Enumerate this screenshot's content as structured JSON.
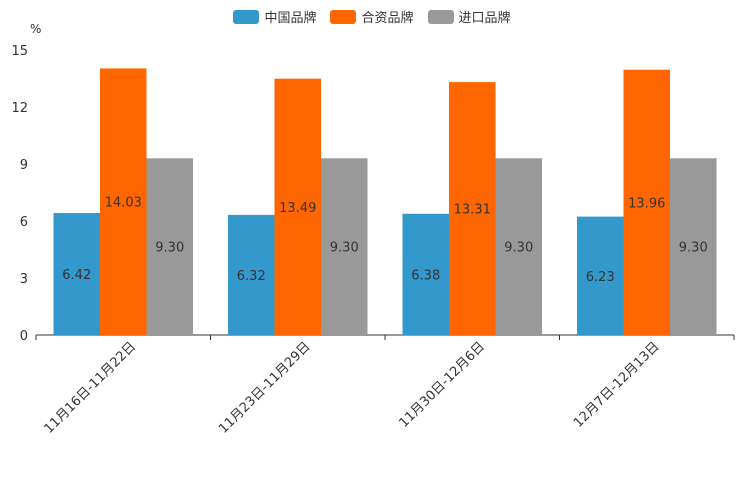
{
  "chart_data": {
    "type": "bar",
    "unit_label": "%",
    "categories": [
      "11月16日-11月22日",
      "11月23日-11月29日",
      "11月30日-12月6日",
      "12月7日-12月13日"
    ],
    "series": [
      {
        "name": "中国品牌",
        "color": "#3398cc",
        "values": [
          6.42,
          6.32,
          6.38,
          6.23
        ],
        "labels": [
          "6.42",
          "6.32",
          "6.38",
          "6.23"
        ]
      },
      {
        "name": "合资品牌",
        "color": "#ff6600",
        "values": [
          14.03,
          13.49,
          13.31,
          13.96
        ],
        "labels": [
          "14.03",
          "13.49",
          "13.31",
          "13.96"
        ]
      },
      {
        "name": "进口品牌",
        "color": "#999999",
        "values": [
          9.3,
          9.3,
          9.3,
          9.3
        ],
        "labels": [
          "9.30",
          "9.30",
          "9.30",
          "9.30"
        ]
      }
    ],
    "yticks": [
      "0",
      "3",
      "6",
      "9",
      "12",
      "15"
    ],
    "ylim": [
      0,
      15
    ]
  }
}
